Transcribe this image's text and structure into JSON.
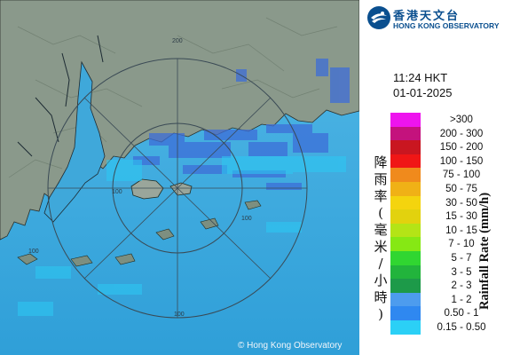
{
  "logo": {
    "name_zh": "香港天文台",
    "name_en": "HONG KONG OBSERVATORY"
  },
  "time": "11:24 HKT",
  "date": "01-01-2025",
  "map": {
    "range_ring_labels": [
      "200",
      "100",
      "100",
      "100",
      "100"
    ],
    "copyright": "© Hong Kong Observatory"
  },
  "legend": {
    "title_en": "Rainfall Rate (mm/h)",
    "title_zh": "降雨率(毫米/小時)",
    "items": [
      {
        "label": ">300",
        "color": "#ee14ee"
      },
      {
        "label": "200 - 300",
        "color": "#c4127d"
      },
      {
        "label": "150 - 200",
        "color": "#c91620"
      },
      {
        "label": "100 - 150",
        "color": "#f01616"
      },
      {
        "label": "75 - 100",
        "color": "#f08a1c"
      },
      {
        "label": "50 - 75",
        "color": "#f0b116"
      },
      {
        "label": "30 - 50",
        "color": "#f4d40e"
      },
      {
        "label": "15 - 30",
        "color": "#e2d20e"
      },
      {
        "label": "10 - 15",
        "color": "#b4e416"
      },
      {
        "label": "7 - 10",
        "color": "#86e814"
      },
      {
        "label": "5 - 7",
        "color": "#30d631"
      },
      {
        "label": "3 - 5",
        "color": "#22b43c"
      },
      {
        "label": "2 - 3",
        "color": "#1d9a49"
      },
      {
        "label": "1 - 2",
        "color": "#4d9cee"
      },
      {
        "label": "0.50 - 1",
        "color": "#2f88f0"
      },
      {
        "label": "0.15 - 0.50",
        "color": "#2bd0f6"
      }
    ]
  }
}
